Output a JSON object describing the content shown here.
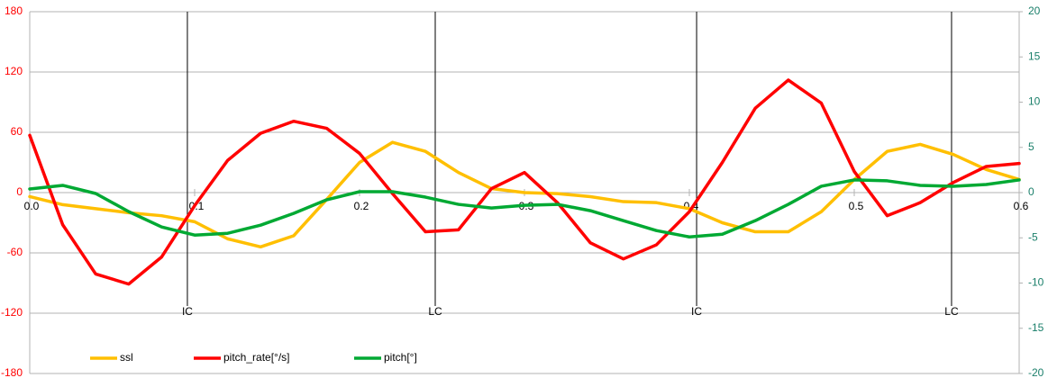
{
  "chart_data": {
    "type": "line",
    "x": [
      0,
      0.02,
      0.04,
      0.06,
      0.08,
      0.1,
      0.12,
      0.14,
      0.16,
      0.18,
      0.2,
      0.22,
      0.24,
      0.26,
      0.28,
      0.3,
      0.32,
      0.34,
      0.36,
      0.38,
      0.4,
      0.42,
      0.44,
      0.46,
      0.48,
      0.5,
      0.52,
      0.54,
      0.56,
      0.58,
      0.6
    ],
    "series": [
      {
        "name": "ssl",
        "color": "#ffbf00",
        "axis": "y",
        "values": [
          -4,
          -12,
          -16,
          -20,
          -23,
          -29,
          -46,
          -54,
          -43,
          -7,
          30,
          50,
          41,
          20,
          4,
          0,
          -1,
          -4,
          -9,
          -10,
          -16,
          -30,
          -39,
          -39,
          -19,
          13,
          41,
          48,
          38,
          23,
          13
        ]
      },
      {
        "name": "pitch_rate[°/s]",
        "color": "#ff0000",
        "axis": "y",
        "values": [
          57,
          -32,
          -81,
          -91,
          -64,
          -13,
          32,
          59,
          71,
          64,
          39,
          -1,
          -39,
          -37,
          4,
          20,
          -10,
          -50,
          -66,
          -52,
          -19,
          30,
          84,
          112,
          89,
          21,
          -23,
          -10,
          10,
          26,
          29
        ]
      },
      {
        "name": "pitch[°]",
        "color": "#00a933",
        "axis": "y2",
        "values": [
          0.4,
          0.8,
          -0.1,
          -2.1,
          -3.8,
          -4.7,
          -4.5,
          -3.6,
          -2.3,
          -0.8,
          0.1,
          0.1,
          -0.5,
          -1.3,
          -1.7,
          -1.4,
          -1.3,
          -2.0,
          -3.1,
          -4.2,
          -4.9,
          -4.6,
          -3.1,
          -1.3,
          0.7,
          1.4,
          1.3,
          0.8,
          0.7,
          0.9,
          1.4
        ]
      }
    ],
    "xlim": [
      0,
      0.6
    ],
    "xticks": [
      {
        "value": 0,
        "label": "0.0"
      },
      0.1,
      0.2,
      0.3,
      0.4,
      0.5,
      0.6
    ],
    "ylim": [
      -180,
      180
    ],
    "yticks": [
      180,
      120,
      60,
      0,
      -60,
      -120,
      -180
    ],
    "y2lim": [
      -20,
      20
    ],
    "y2ticks": [
      20,
      15,
      10,
      5,
      0,
      -5,
      -10,
      -15,
      -20
    ],
    "ytick_color": "#ff0000",
    "y2tick_color": "#1a7f6a",
    "grid": true,
    "legend": "bottom",
    "markers": [
      {
        "x": 0.0956,
        "label": "IC"
      },
      {
        "x": 0.2459,
        "label": "LC"
      },
      {
        "x": 0.4044,
        "label": "IC"
      },
      {
        "x": 0.559,
        "label": "LC"
      }
    ]
  }
}
